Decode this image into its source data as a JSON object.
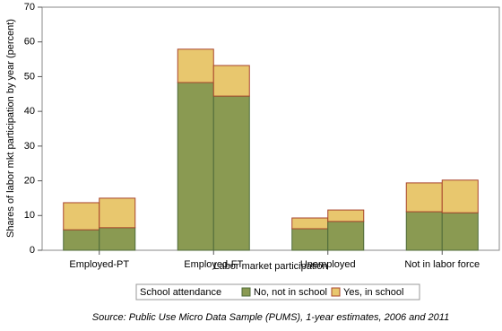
{
  "chart_data": {
    "type": "stacked_grouped_bar",
    "y_label": "Shares of labor mkt participation by year (percent)",
    "x_label": "Labor market participation",
    "categories": [
      "Employed-PT",
      "Employed-FT",
      "Unemployed",
      "Not in labor force"
    ],
    "series": [
      {
        "name": "No, not in school",
        "color": "#8a9a52",
        "values": [
          [
            5.9,
            6.5
          ],
          [
            48.3,
            44.4
          ],
          [
            6.2,
            8.3
          ],
          [
            11.1,
            10.8
          ]
        ]
      },
      {
        "name": "Yes, in school",
        "color": "#e8c76e",
        "values": [
          [
            7.8,
            8.5
          ],
          [
            9.6,
            8.8
          ],
          [
            3.1,
            3.3
          ],
          [
            8.3,
            9.4
          ]
        ]
      }
    ],
    "legend_title": "School attendance",
    "source": "Source: Public Use Micro Data Sample (PUMS), 1-year estimates, 2006 and 2011",
    "ylim": [
      0,
      70
    ],
    "yticks": [
      0,
      10,
      20,
      30,
      40,
      50,
      60,
      70
    ],
    "grid": false
  }
}
